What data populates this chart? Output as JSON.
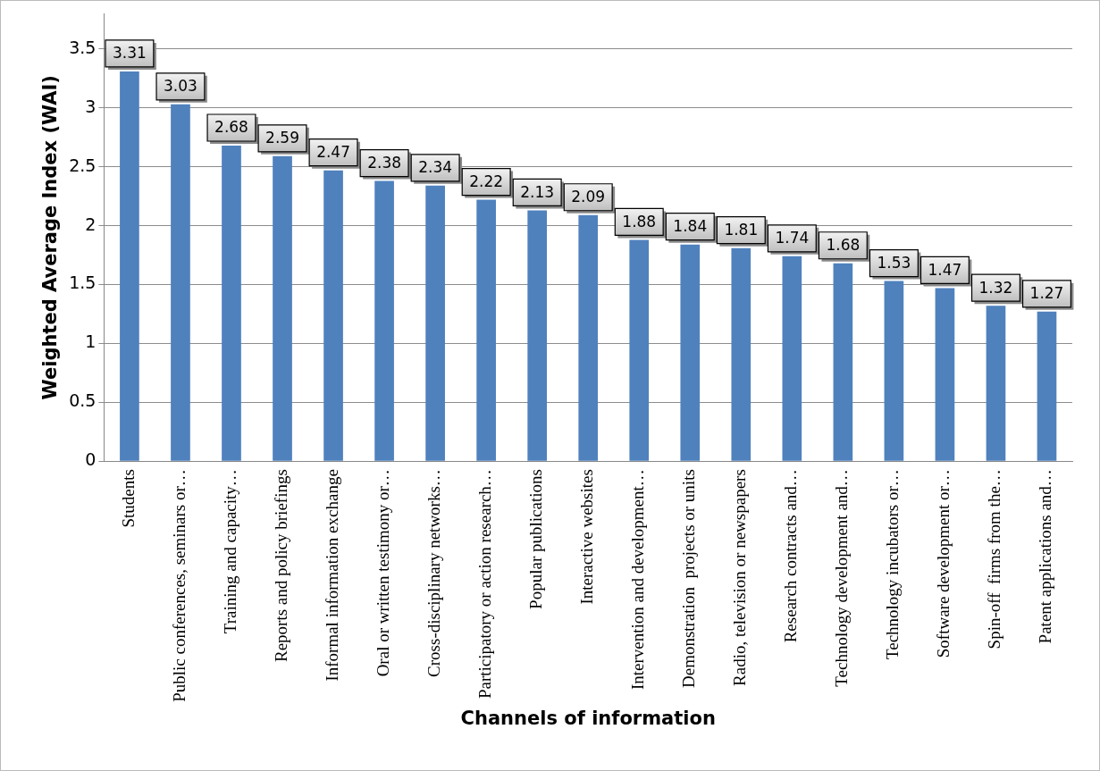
{
  "chart_data": {
    "type": "bar",
    "xlabel": "Channels of information",
    "ylabel": "Weighted Average Index (WAI)",
    "categories": [
      "Students",
      "Public conferences, seminars or…",
      "Training and capacity…",
      "Reports and policy briefings",
      "Informal information exchange",
      "Oral or written testimony or…",
      "Cross-disciplinary networks…",
      "Participatory or action research…",
      "Popular publications",
      "Interactive websites",
      "Intervention and development…",
      "Demonstration  projects or units",
      "Radio, television or newspapers",
      "Research contracts and…",
      "Technology development and…",
      "Technology incubators or…",
      "Software development or…",
      "Spin-off  firms from the…",
      "Patent applications and…"
    ],
    "values": [
      3.31,
      3.03,
      2.68,
      2.59,
      2.47,
      2.38,
      2.34,
      2.22,
      2.13,
      2.09,
      1.88,
      1.84,
      1.81,
      1.74,
      1.68,
      1.53,
      1.47,
      1.32,
      1.27
    ],
    "color": "#4f81bd",
    "ylim": [
      0,
      3.8
    ],
    "yticks": [
      0,
      0.5,
      1,
      1.5,
      2,
      2.5,
      3,
      3.5
    ],
    "grid": "y",
    "data_labels": true
  }
}
